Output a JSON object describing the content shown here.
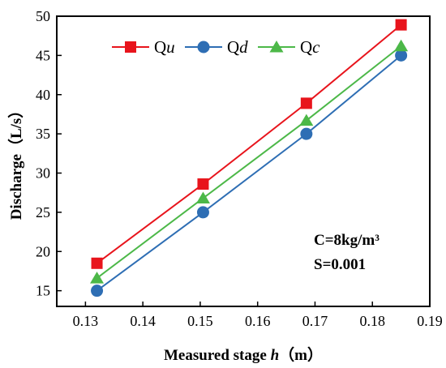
{
  "chart_data": {
    "type": "line",
    "xlabel": "Measured stage ",
    "xlabel_var": "h",
    "xlabel_unit": "（m）",
    "ylabel": "Discharge（L/s）",
    "xlim": [
      0.125,
      0.19
    ],
    "ylim": [
      13,
      50
    ],
    "xticks": [
      0.13,
      0.14,
      0.15,
      0.16,
      0.17,
      0.18,
      0.19
    ],
    "xtick_labels": [
      "0.13",
      "0.14",
      "0.15",
      "0.16",
      "0.17",
      "0.18",
      "0.19"
    ],
    "yticks": [
      15,
      20,
      25,
      30,
      35,
      40,
      45,
      50
    ],
    "ytick_labels": [
      "15",
      "20",
      "25",
      "30",
      "35",
      "40",
      "45",
      "50"
    ],
    "grid": false,
    "legend_position": "top",
    "x": [
      0.132,
      0.1505,
      0.1685,
      0.185
    ],
    "series": [
      {
        "name": "Qu",
        "name_main": "Q",
        "name_sub": "u",
        "color": "#e8141c",
        "marker": "square",
        "values": [
          18.5,
          28.6,
          38.9,
          48.9
        ]
      },
      {
        "name": "Qd",
        "name_main": "Q",
        "name_sub": "d",
        "color": "#2e6eb4",
        "marker": "circle",
        "values": [
          15.0,
          25.0,
          35.0,
          45.0
        ]
      },
      {
        "name": "Qc",
        "name_main": "Q",
        "name_sub": "c",
        "color": "#4cb848",
        "marker": "triangle",
        "values": [
          16.6,
          26.8,
          36.7,
          46.2
        ]
      }
    ],
    "annotations": [
      "C=8kg/m³",
      "S=0.001"
    ]
  }
}
